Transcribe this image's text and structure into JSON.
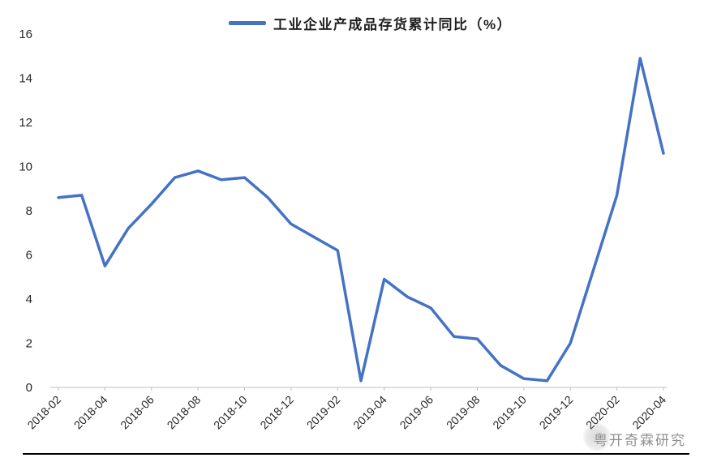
{
  "legend": {
    "label": "工业企业产成品存货累计同比（%）"
  },
  "watermark": {
    "text": "粤开奇霖研究"
  },
  "colors": {
    "line": "#4472C4",
    "axis": "#bfbfbf",
    "tick_text": "#262626",
    "watermark": "#7d7d7d",
    "divider": "#000000"
  },
  "chart_data": {
    "type": "line",
    "title": "",
    "series_name": "工业企业产成品存货累计同比（%）",
    "xlabel": "",
    "ylabel": "",
    "ylim": [
      0,
      16
    ],
    "yticks": [
      0,
      2,
      4,
      6,
      8,
      10,
      12,
      14,
      16
    ],
    "grid": false,
    "legend_position": "top-center",
    "line_color": "#4472C4",
    "x": [
      "2018-02",
      "2018-03",
      "2018-04",
      "2018-05",
      "2018-06",
      "2018-07",
      "2018-08",
      "2018-09",
      "2018-10",
      "2018-11",
      "2018-12",
      "2019-02",
      "2019-03",
      "2019-04",
      "2019-05",
      "2019-06",
      "2019-07",
      "2019-08",
      "2019-09",
      "2019-10",
      "2019-11",
      "2019-12",
      "2020-02",
      "2020-03",
      "2020-04"
    ],
    "values": [
      8.6,
      8.7,
      5.5,
      7.2,
      8.3,
      9.5,
      9.8,
      9.4,
      9.5,
      8.6,
      7.4,
      6.2,
      0.3,
      4.9,
      4.1,
      3.6,
      2.3,
      2.2,
      1.0,
      0.4,
      0.3,
      2.0,
      8.7,
      14.9,
      10.6
    ],
    "xticks": [
      "2018-02",
      "2018-04",
      "2018-06",
      "2018-08",
      "2018-10",
      "2018-12",
      "2019-02",
      "2019-04",
      "2019-06",
      "2019-08",
      "2019-10",
      "2019-12",
      "2020-02",
      "2020-04"
    ]
  }
}
